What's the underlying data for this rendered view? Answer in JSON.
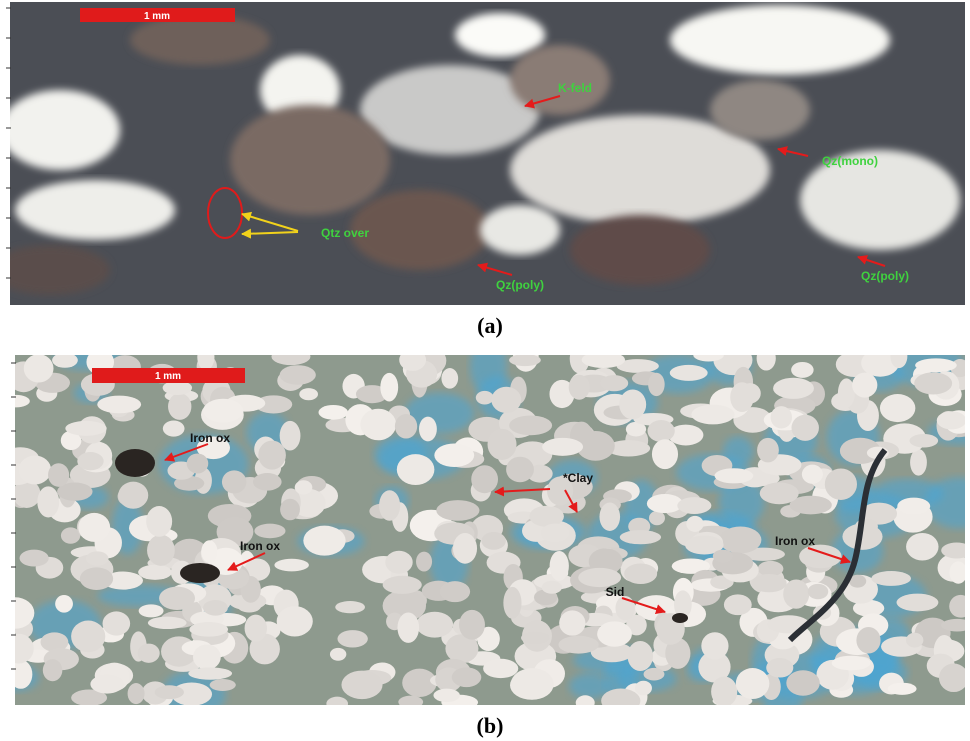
{
  "panels": [
    {
      "scale_bar": "1 mm",
      "labels": [
        "K-feld",
        "Qz(mono)",
        "Qtz over",
        "Qz(poly)",
        "Qz(poly)"
      ],
      "caption": "(a)"
    },
    {
      "scale_bar": "1 mm",
      "labels": [
        "Iron ox",
        "*Clay",
        "Iron ox",
        "Iron ox",
        "Sid"
      ],
      "caption": "(b)"
    }
  ]
}
